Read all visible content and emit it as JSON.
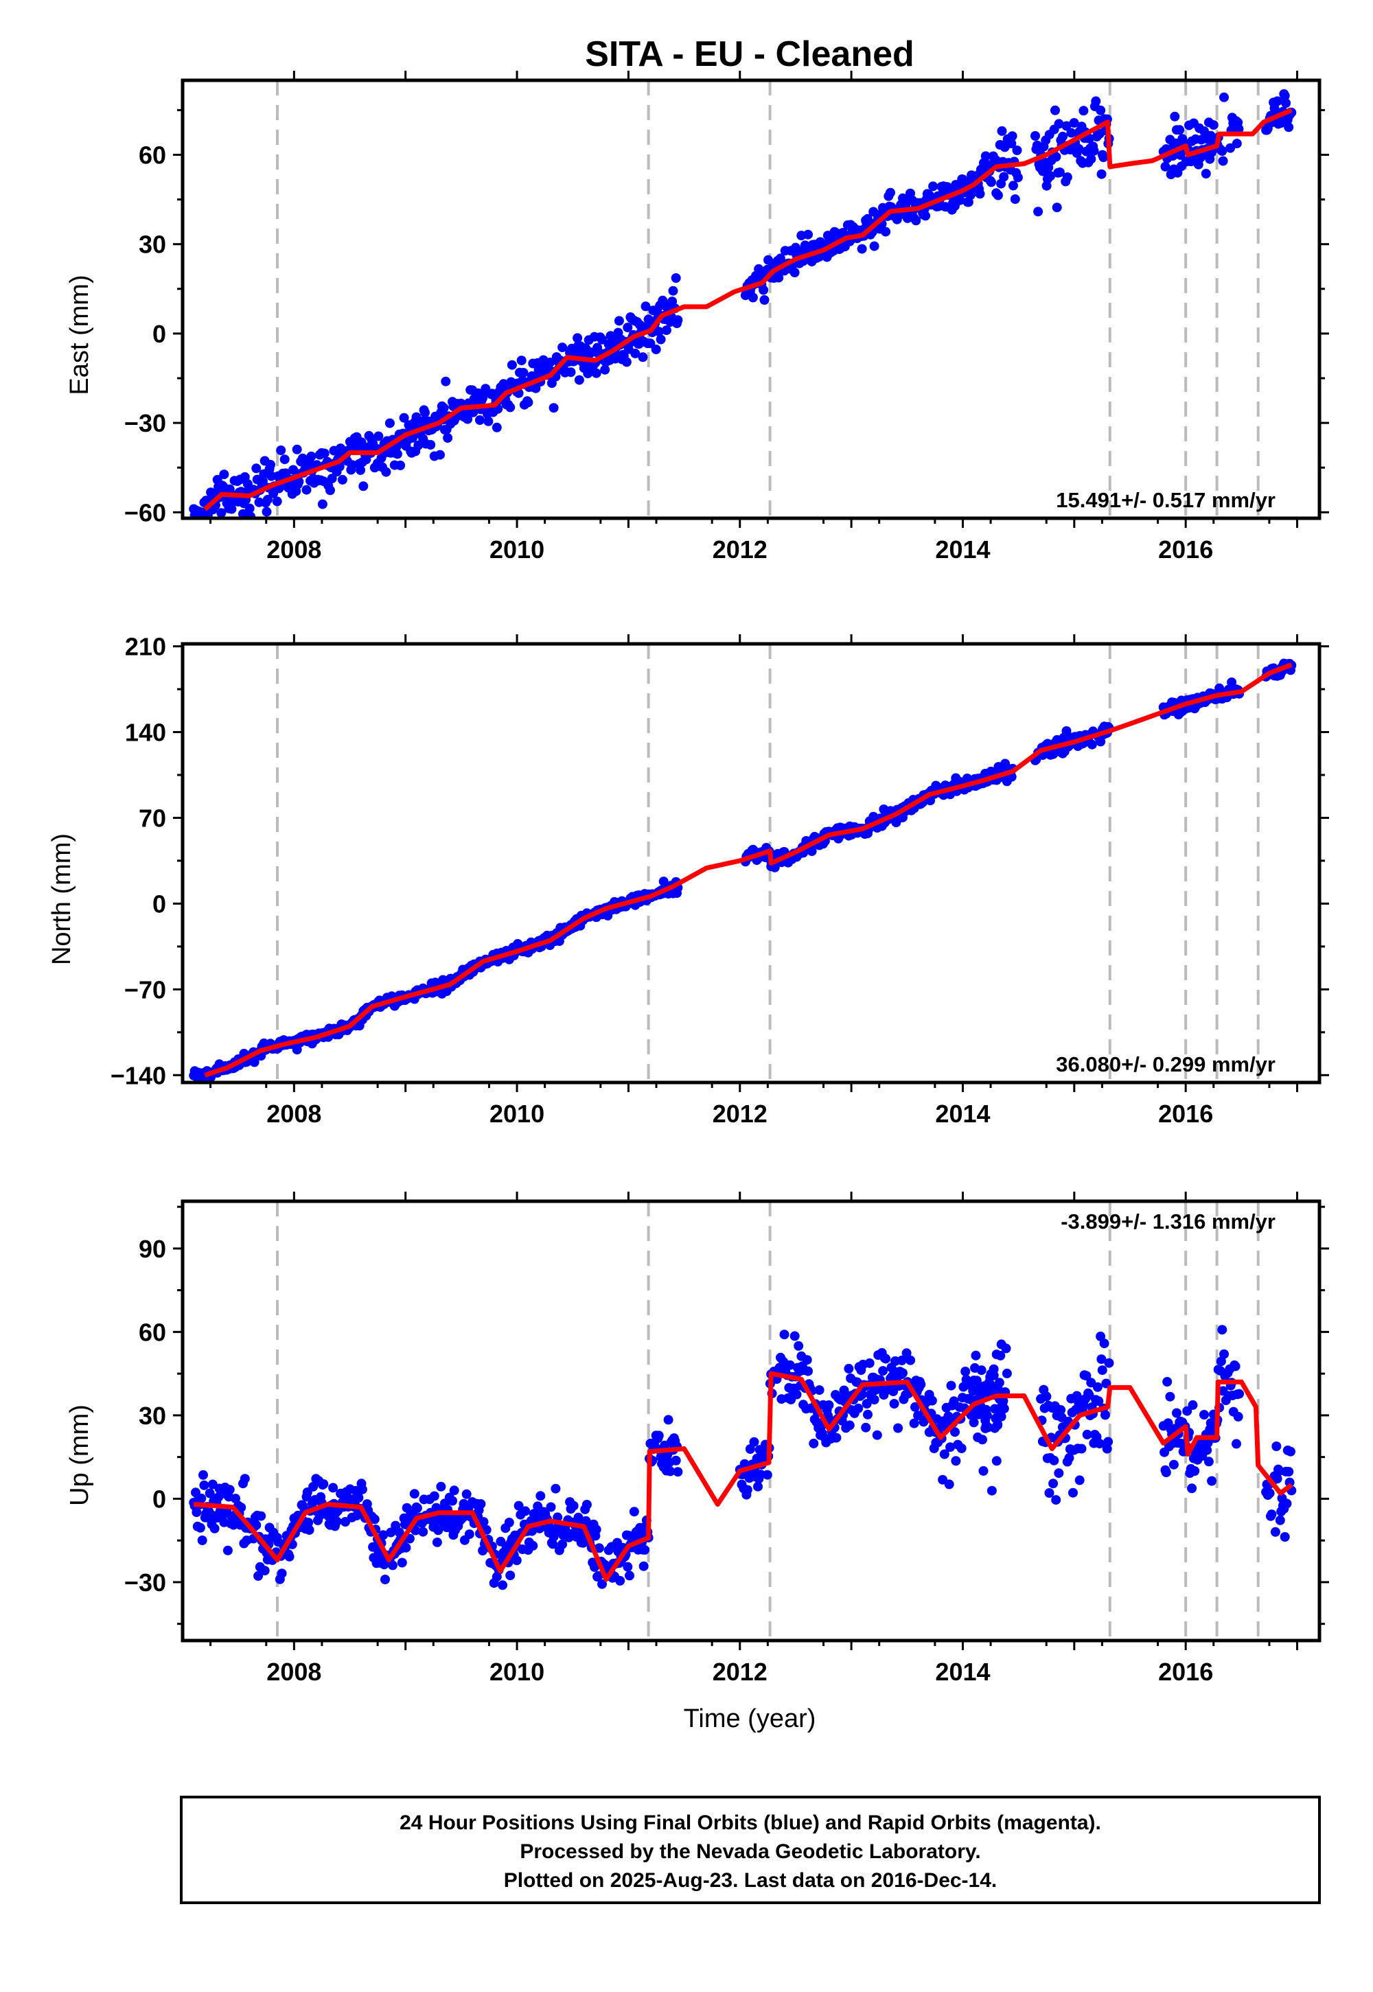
{
  "title": "SITA  - EU - Cleaned",
  "xlabel": "Time (year)",
  "caption": [
    "24 Hour Positions Using Final Orbits (blue) and Rapid Orbits (magenta).",
    "Processed by the Nevada Geodetic Laboratory.",
    "Plotted on 2025-Aug-23. Last data on 2016-Dec-14."
  ],
  "colors": {
    "points": "#0000ff",
    "model": "#ff0000",
    "breaks": "#bbbbbb"
  },
  "chart_data": [
    {
      "type": "scatter",
      "ylabel": "East (mm)",
      "rate": "15.491+/- 0.517 mm/yr",
      "xlim": [
        2007.0,
        2017.2
      ],
      "ylim": [
        -62,
        85
      ],
      "xticks": [
        2008,
        2010,
        2012,
        2014,
        2016
      ],
      "yticks": [
        -60,
        -30,
        0,
        30,
        60
      ],
      "breaks": [
        2007.85,
        2011.18,
        2012.27,
        2015.32,
        2016.0,
        2016.28,
        2016.65
      ],
      "series": [
        {
          "model": [
            [
              2007.2,
              -59
            ],
            [
              2007.35,
              -54
            ],
            [
              2007.6,
              -54.5
            ],
            [
              2007.8,
              -51
            ],
            [
              2008.1,
              -47
            ],
            [
              2008.4,
              -43
            ],
            [
              2008.5,
              -40
            ],
            [
              2008.75,
              -40
            ],
            [
              2009.0,
              -34
            ],
            [
              2009.3,
              -30
            ],
            [
              2009.5,
              -25
            ],
            [
              2009.8,
              -24
            ],
            [
              2009.9,
              -20
            ],
            [
              2010.1,
              -17
            ],
            [
              2010.3,
              -14
            ],
            [
              2010.45,
              -8
            ],
            [
              2010.7,
              -9
            ],
            [
              2010.85,
              -6
            ],
            [
              2011.05,
              -1
            ],
            [
              2011.2,
              1
            ],
            [
              2011.3,
              6
            ],
            [
              2011.5,
              9
            ],
            [
              2011.7,
              9
            ],
            [
              2011.95,
              14
            ],
            [
              2012.2,
              17
            ],
            [
              2012.3,
              21
            ],
            [
              2012.5,
              25
            ],
            [
              2012.75,
              28
            ],
            [
              2012.95,
              32
            ],
            [
              2013.1,
              33
            ],
            [
              2013.35,
              41
            ],
            [
              2013.6,
              42
            ],
            [
              2013.8,
              45
            ],
            [
              2014.0,
              48
            ],
            [
              2014.1,
              50
            ],
            [
              2014.3,
              56
            ],
            [
              2014.55,
              57
            ],
            [
              2014.75,
              60
            ],
            [
              2015.3,
              71
            ],
            [
              2015.32,
              56
            ],
            [
              2015.5,
              57
            ],
            [
              2015.7,
              58
            ],
            [
              2016.0,
              63
            ],
            [
              2016.02,
              60
            ],
            [
              2016.28,
              63
            ],
            [
              2016.3,
              67
            ],
            [
              2016.6,
              67
            ],
            [
              2016.7,
              71
            ],
            [
              2016.95,
              75
            ]
          ],
          "segments": [
            [
              2007.1,
              2011.45,
              7
            ],
            [
              2012.05,
              2013.95,
              5
            ],
            [
              2013.95,
              2014.3,
              6
            ],
            [
              2014.3,
              2014.5,
              10
            ],
            [
              2014.65,
              2015.32,
              13
            ],
            [
              2015.8,
              2016.35,
              7
            ],
            [
              2016.4,
              2016.48,
              5
            ],
            [
              2016.72,
              2016.95,
              5
            ]
          ]
        }
      ]
    },
    {
      "type": "scatter",
      "ylabel": "North (mm)",
      "rate": "36.080+/- 0.299 mm/yr",
      "xlim": [
        2007.0,
        2017.2
      ],
      "ylim": [
        -146,
        212
      ],
      "xticks": [
        2008,
        2010,
        2012,
        2014,
        2016
      ],
      "yticks": [
        -140,
        -70,
        0,
        70,
        140,
        210
      ],
      "breaks": [
        2007.85,
        2011.18,
        2012.27,
        2015.32,
        2016.0,
        2016.28,
        2016.65
      ],
      "series": [
        {
          "model": [
            [
              2007.2,
              -140
            ],
            [
              2007.4,
              -134
            ],
            [
              2007.7,
              -120
            ],
            [
              2007.9,
              -115
            ],
            [
              2008.2,
              -109
            ],
            [
              2008.5,
              -100
            ],
            [
              2008.7,
              -84
            ],
            [
              2009.0,
              -76
            ],
            [
              2009.4,
              -66
            ],
            [
              2009.7,
              -47
            ],
            [
              2010.0,
              -39
            ],
            [
              2010.3,
              -30
            ],
            [
              2010.6,
              -12
            ],
            [
              2010.8,
              -4
            ],
            [
              2011.2,
              6
            ],
            [
              2011.4,
              14
            ],
            [
              2011.7,
              29
            ],
            [
              2012.0,
              35
            ],
            [
              2012.27,
              43
            ],
            [
              2012.28,
              33
            ],
            [
              2012.5,
              42
            ],
            [
              2012.8,
              56
            ],
            [
              2013.1,
              61
            ],
            [
              2013.4,
              73
            ],
            [
              2013.7,
              89
            ],
            [
              2014.0,
              96
            ],
            [
              2014.2,
              101
            ],
            [
              2014.45,
              108
            ],
            [
              2014.7,
              125
            ],
            [
              2015.0,
              132
            ],
            [
              2015.32,
              141
            ],
            [
              2015.6,
              150
            ],
            [
              2016.0,
              163
            ],
            [
              2016.28,
              170
            ],
            [
              2016.5,
              173
            ],
            [
              2016.75,
              188
            ],
            [
              2016.95,
              195
            ]
          ],
          "segments": [
            [
              2007.1,
              2011.45,
              4
            ],
            [
              2012.05,
              2012.28,
              4
            ],
            [
              2012.28,
              2014.45,
              5
            ],
            [
              2014.65,
              2015.32,
              5
            ],
            [
              2015.8,
              2016.48,
              5
            ],
            [
              2016.72,
              2016.95,
              4
            ]
          ]
        }
      ]
    },
    {
      "type": "scatter",
      "ylabel": "Up (mm)",
      "rate": "-3.899+/- 1.316 mm/yr",
      "xlim": [
        2007.0,
        2017.2
      ],
      "ylim": [
        -51,
        107
      ],
      "xticks": [
        2008,
        2010,
        2012,
        2014,
        2016
      ],
      "yticks": [
        -30,
        0,
        30,
        60,
        90
      ],
      "breaks": [
        2007.85,
        2011.18,
        2012.27,
        2015.32,
        2016.0,
        2016.28,
        2016.65
      ],
      "series": [
        {
          "model": [
            [
              2007.1,
              -2
            ],
            [
              2007.45,
              -3
            ],
            [
              2007.6,
              -10
            ],
            [
              2007.85,
              -22
            ],
            [
              2008.1,
              -5
            ],
            [
              2008.3,
              -2
            ],
            [
              2008.6,
              -3
            ],
            [
              2008.85,
              -22
            ],
            [
              2009.1,
              -7
            ],
            [
              2009.3,
              -5
            ],
            [
              2009.6,
              -5
            ],
            [
              2009.85,
              -26
            ],
            [
              2010.1,
              -10
            ],
            [
              2010.3,
              -8
            ],
            [
              2010.6,
              -10
            ],
            [
              2010.8,
              -29
            ],
            [
              2011.0,
              -17
            ],
            [
              2011.18,
              -14
            ],
            [
              2011.19,
              17
            ],
            [
              2011.5,
              18
            ],
            [
              2011.8,
              -2
            ],
            [
              2012.0,
              10
            ],
            [
              2012.26,
              13
            ],
            [
              2012.28,
              45
            ],
            [
              2012.55,
              43
            ],
            [
              2012.8,
              25
            ],
            [
              2013.1,
              41
            ],
            [
              2013.5,
              42
            ],
            [
              2013.8,
              22
            ],
            [
              2014.1,
              34
            ],
            [
              2014.3,
              37
            ],
            [
              2014.55,
              37
            ],
            [
              2014.8,
              18
            ],
            [
              2015.05,
              30
            ],
            [
              2015.3,
              33
            ],
            [
              2015.32,
              40
            ],
            [
              2015.5,
              40
            ],
            [
              2015.8,
              20
            ],
            [
              2016.0,
              26
            ],
            [
              2016.02,
              16
            ],
            [
              2016.1,
              22
            ],
            [
              2016.28,
              22
            ],
            [
              2016.29,
              42
            ],
            [
              2016.5,
              42
            ],
            [
              2016.63,
              33
            ],
            [
              2016.65,
              12
            ],
            [
              2016.85,
              2
            ],
            [
              2016.95,
              5
            ]
          ],
          "segments": [
            [
              2007.1,
              2011.45,
              9
            ],
            [
              2012.0,
              2012.28,
              9
            ],
            [
              2012.28,
              2013.7,
              10
            ],
            [
              2013.7,
              2014.4,
              12
            ],
            [
              2014.1,
              2014.35,
              22
            ],
            [
              2014.7,
              2015.32,
              18
            ],
            [
              2015.8,
              2016.48,
              14
            ],
            [
              2016.72,
              2016.95,
              18
            ]
          ]
        }
      ]
    }
  ]
}
